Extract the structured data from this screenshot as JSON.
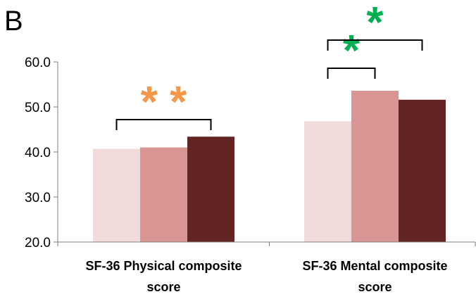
{
  "panel_label": "B",
  "chart_data": {
    "type": "bar",
    "categories": [
      [
        "SF-36 Physical composite",
        "score"
      ],
      [
        "SF-36 Mental composite",
        "score"
      ]
    ],
    "series": [
      {
        "values": [
          40.7,
          46.8
        ],
        "color": "#f2dcdb"
      },
      {
        "values": [
          41.0,
          53.6
        ],
        "color": "#d99594"
      },
      {
        "values": [
          43.4,
          51.6
        ],
        "color": "#632523"
      }
    ],
    "ylim": [
      20,
      60
    ],
    "yticks": [
      "20.0",
      "30.0",
      "40.0",
      "50.0",
      "60.0"
    ],
    "grid": false,
    "xlabel": "",
    "ylabel": "",
    "title": "",
    "significance": [
      {
        "category": 0,
        "from_series": 0,
        "to_series": 2,
        "label": "* *",
        "color": "#f79646"
      },
      {
        "category": 1,
        "from_series": 0,
        "to_series": 1,
        "label": "*",
        "color": "#00b050"
      },
      {
        "category": 1,
        "from_series": 0,
        "to_series": 2,
        "label": "*",
        "color": "#00b050"
      }
    ]
  }
}
